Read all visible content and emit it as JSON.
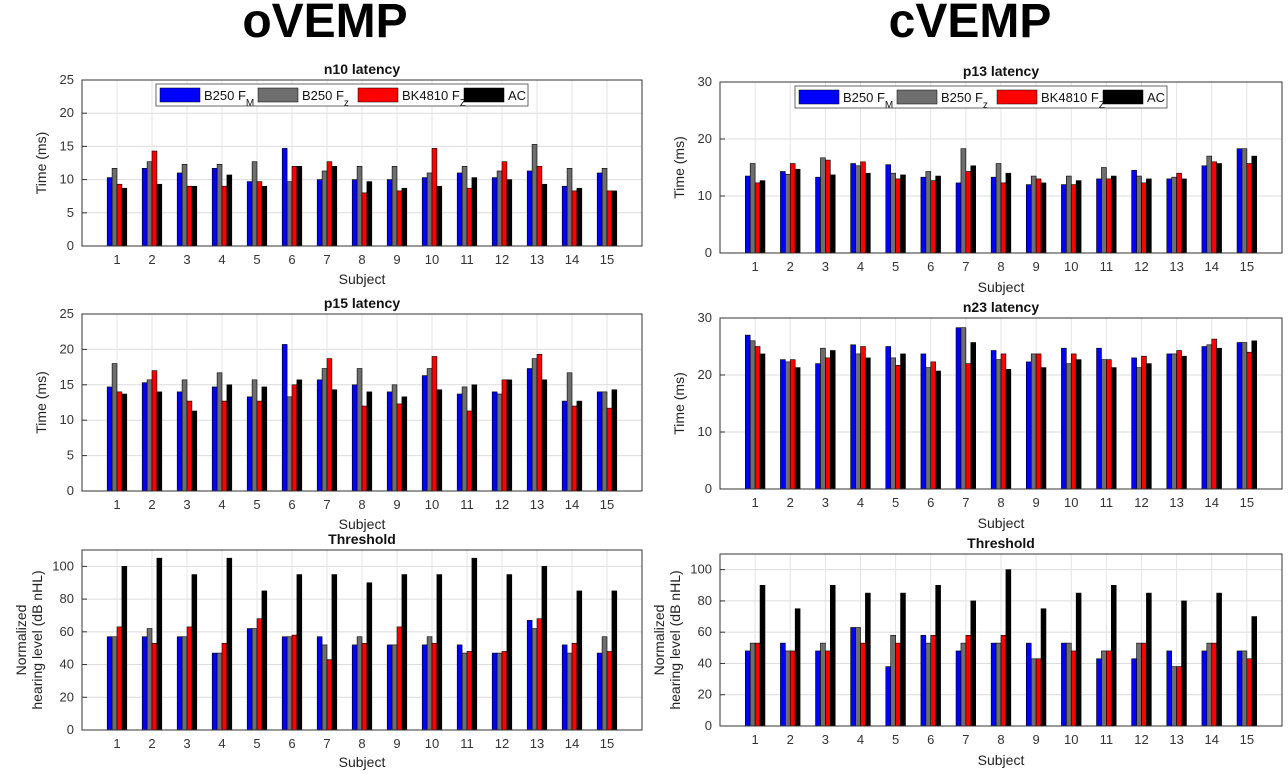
{
  "headers": {
    "left": "oVEMP",
    "right": "cVEMP"
  },
  "colors": {
    "B250 FM": "#0000ff",
    "B250 Fz": "#6e6e6e",
    "BK4810 FZ": "#ff0000",
    "AC": "#000000"
  },
  "chart_data": [
    {
      "type": "bar",
      "title": "n10 latency",
      "xlabel": "Subject",
      "ylabel": "Time (ms)",
      "ylim": [
        0,
        25
      ],
      "yticks": [
        0,
        5,
        10,
        15,
        20,
        25
      ],
      "grid": true,
      "legend": "top",
      "legend_entries": [
        {
          "base": "B250 F",
          "sub": "M"
        },
        {
          "base": "B250 F",
          "sub": "z"
        },
        {
          "base": "BK4810 F",
          "sub": "Z"
        },
        {
          "base": "AC",
          "sub": ""
        }
      ],
      "categories": [
        "1",
        "2",
        "3",
        "4",
        "5",
        "6",
        "7",
        "8",
        "9",
        "10",
        "11",
        "12",
        "13",
        "14",
        "15"
      ],
      "series": [
        {
          "name": "B250 FM",
          "values": [
            10.3,
            11.7,
            11.0,
            11.7,
            9.7,
            14.7,
            10.0,
            10.0,
            10.0,
            10.3,
            11.0,
            10.3,
            11.3,
            9.0,
            11.0
          ]
        },
        {
          "name": "B250 Fz",
          "values": [
            11.7,
            12.7,
            12.3,
            12.3,
            12.7,
            9.7,
            11.3,
            12.0,
            12.0,
            11.0,
            12.0,
            11.3,
            15.3,
            11.7,
            11.7
          ]
        },
        {
          "name": "BK4810 FZ",
          "values": [
            9.3,
            14.3,
            9.0,
            9.0,
            9.7,
            12.0,
            12.7,
            8.0,
            8.3,
            14.7,
            8.7,
            12.7,
            12.0,
            8.3,
            8.3
          ]
        },
        {
          "name": "AC",
          "values": [
            8.7,
            9.3,
            9.0,
            10.7,
            9.0,
            12.0,
            12.0,
            9.7,
            8.7,
            9.0,
            10.3,
            10.0,
            9.3,
            8.7,
            8.3
          ]
        }
      ]
    },
    {
      "type": "bar",
      "title": "p15 latency",
      "xlabel": "Subject",
      "ylabel": "Time (ms)",
      "ylim": [
        0,
        25
      ],
      "yticks": [
        0,
        5,
        10,
        15,
        20,
        25
      ],
      "grid": true,
      "categories": [
        "1",
        "2",
        "3",
        "4",
        "5",
        "6",
        "7",
        "8",
        "9",
        "10",
        "11",
        "12",
        "13",
        "14",
        "15"
      ],
      "series": [
        {
          "name": "B250 FM",
          "values": [
            14.7,
            15.3,
            14.0,
            14.7,
            13.3,
            20.7,
            15.7,
            15.0,
            14.0,
            16.3,
            13.7,
            14.0,
            17.3,
            12.7,
            14.0
          ]
        },
        {
          "name": "B250 Fz",
          "values": [
            18.0,
            15.7,
            15.7,
            16.7,
            15.7,
            13.3,
            17.3,
            17.3,
            15.0,
            17.3,
            14.7,
            13.7,
            18.7,
            16.7,
            14.0
          ]
        },
        {
          "name": "BK4810 FZ",
          "values": [
            14.0,
            17.0,
            12.7,
            12.7,
            12.7,
            15.0,
            18.7,
            12.0,
            12.3,
            19.0,
            11.3,
            15.7,
            19.3,
            12.0,
            11.7
          ]
        },
        {
          "name": "AC",
          "values": [
            13.7,
            14.0,
            11.3,
            15.0,
            14.7,
            15.7,
            14.3,
            14.0,
            13.3,
            14.3,
            15.0,
            15.7,
            15.7,
            12.7,
            14.3
          ]
        }
      ]
    },
    {
      "type": "bar",
      "title": "Threshold",
      "xlabel": "Subject",
      "ylabel": [
        "Normalized",
        "hearing level (dB nHL)"
      ],
      "ylim": [
        0,
        110
      ],
      "yticks": [
        0,
        20,
        40,
        60,
        80,
        100
      ],
      "grid": true,
      "categories": [
        "1",
        "2",
        "3",
        "4",
        "5",
        "6",
        "7",
        "8",
        "9",
        "10",
        "11",
        "12",
        "13",
        "14",
        "15"
      ],
      "series": [
        {
          "name": "B250 FM",
          "values": [
            57,
            57,
            57,
            47,
            62,
            57,
            57,
            52,
            52,
            52,
            52,
            47,
            67,
            52,
            47
          ]
        },
        {
          "name": "B250 Fz",
          "values": [
            57,
            62,
            57,
            47,
            62,
            57,
            52,
            57,
            52,
            57,
            47,
            47,
            62,
            47,
            57
          ]
        },
        {
          "name": "BK4810 FZ",
          "values": [
            63,
            53,
            63,
            53,
            68,
            58,
            43,
            53,
            63,
            53,
            48,
            48,
            68,
            53,
            48
          ]
        },
        {
          "name": "AC",
          "values": [
            100,
            105,
            95,
            105,
            85,
            95,
            95,
            90,
            95,
            95,
            105,
            95,
            100,
            85,
            85
          ]
        }
      ]
    },
    {
      "type": "bar",
      "title": "p13 latency",
      "xlabel": "Subject",
      "ylabel": "Time (ms)",
      "ylim": [
        0,
        30
      ],
      "yticks": [
        0,
        10,
        20,
        30
      ],
      "grid": true,
      "legend": "top",
      "legend_entries": [
        {
          "base": "B250 F",
          "sub": "M"
        },
        {
          "base": "B250 F",
          "sub": "z"
        },
        {
          "base": "BK4810 F",
          "sub": "Z"
        },
        {
          "base": "AC",
          "sub": ""
        }
      ],
      "categories": [
        "1",
        "2",
        "3",
        "4",
        "5",
        "6",
        "7",
        "8",
        "9",
        "10",
        "11",
        "12",
        "13",
        "14",
        "15"
      ],
      "series": [
        {
          "name": "B250 FM",
          "values": [
            13.5,
            14.3,
            13.3,
            15.7,
            15.5,
            13.3,
            12.3,
            13.3,
            12.0,
            12.0,
            13.0,
            14.5,
            13.0,
            15.3,
            18.3
          ]
        },
        {
          "name": "B250 Fz",
          "values": [
            15.7,
            13.8,
            16.7,
            15.3,
            14.0,
            14.3,
            18.3,
            15.7,
            13.5,
            13.5,
            15.0,
            13.5,
            13.3,
            17.0,
            18.3
          ]
        },
        {
          "name": "BK4810 FZ",
          "values": [
            12.3,
            15.7,
            16.3,
            16.0,
            13.0,
            12.7,
            14.3,
            12.3,
            13.0,
            12.0,
            13.0,
            12.3,
            14.0,
            16.0,
            15.7
          ]
        },
        {
          "name": "AC",
          "values": [
            12.7,
            14.7,
            13.7,
            14.0,
            13.7,
            13.5,
            15.3,
            14.0,
            12.3,
            12.7,
            13.5,
            13.0,
            13.0,
            15.7,
            17.0
          ]
        }
      ]
    },
    {
      "type": "bar",
      "title": "n23 latency",
      "xlabel": "Subject",
      "ylabel": "Time (ms)",
      "ylim": [
        0,
        30
      ],
      "yticks": [
        0,
        10,
        20,
        30
      ],
      "grid": true,
      "categories": [
        "1",
        "2",
        "3",
        "4",
        "5",
        "6",
        "7",
        "8",
        "9",
        "10",
        "11",
        "12",
        "13",
        "14",
        "15"
      ],
      "series": [
        {
          "name": "B250 FM",
          "values": [
            27.0,
            22.7,
            22.0,
            25.3,
            25.0,
            23.7,
            28.3,
            24.3,
            22.3,
            24.7,
            24.7,
            23.0,
            23.7,
            25.0,
            25.7
          ]
        },
        {
          "name": "B250 Fz",
          "values": [
            26.0,
            22.3,
            24.7,
            23.7,
            23.0,
            21.3,
            28.3,
            22.7,
            23.7,
            22.0,
            22.7,
            21.3,
            23.7,
            25.3,
            25.7
          ]
        },
        {
          "name": "BK4810 FZ",
          "values": [
            25.0,
            22.7,
            23.0,
            25.0,
            21.7,
            22.3,
            22.0,
            23.7,
            23.7,
            23.7,
            22.7,
            23.3,
            24.3,
            26.3,
            24.0
          ]
        },
        {
          "name": "AC",
          "values": [
            23.7,
            21.3,
            24.3,
            23.0,
            23.7,
            20.7,
            25.7,
            21.0,
            21.3,
            22.7,
            21.3,
            22.0,
            23.3,
            24.7,
            26.0
          ]
        }
      ]
    },
    {
      "type": "bar",
      "title": "Threshold",
      "xlabel": "Subject",
      "ylabel": [
        "Normalized",
        "hearing level (dB nHL)"
      ],
      "ylim": [
        0,
        110
      ],
      "yticks": [
        0,
        20,
        40,
        60,
        80,
        100
      ],
      "grid": true,
      "categories": [
        "1",
        "2",
        "3",
        "4",
        "5",
        "6",
        "7",
        "8",
        "9",
        "10",
        "11",
        "12",
        "13",
        "14",
        "15"
      ],
      "series": [
        {
          "name": "B250 FM",
          "values": [
            48,
            53,
            48,
            63,
            38,
            58,
            48,
            53,
            53,
            53,
            43,
            43,
            48,
            48,
            48
          ]
        },
        {
          "name": "B250 Fz",
          "values": [
            53,
            48,
            53,
            63,
            58,
            53,
            53,
            53,
            43,
            53,
            48,
            53,
            38,
            53,
            48
          ]
        },
        {
          "name": "BK4810 FZ",
          "values": [
            53,
            48,
            48,
            53,
            53,
            58,
            58,
            58,
            43,
            48,
            48,
            53,
            38,
            53,
            43
          ]
        },
        {
          "name": "AC",
          "values": [
            90,
            75,
            90,
            85,
            85,
            90,
            80,
            100,
            75,
            85,
            90,
            85,
            80,
            85,
            70
          ]
        }
      ]
    }
  ]
}
